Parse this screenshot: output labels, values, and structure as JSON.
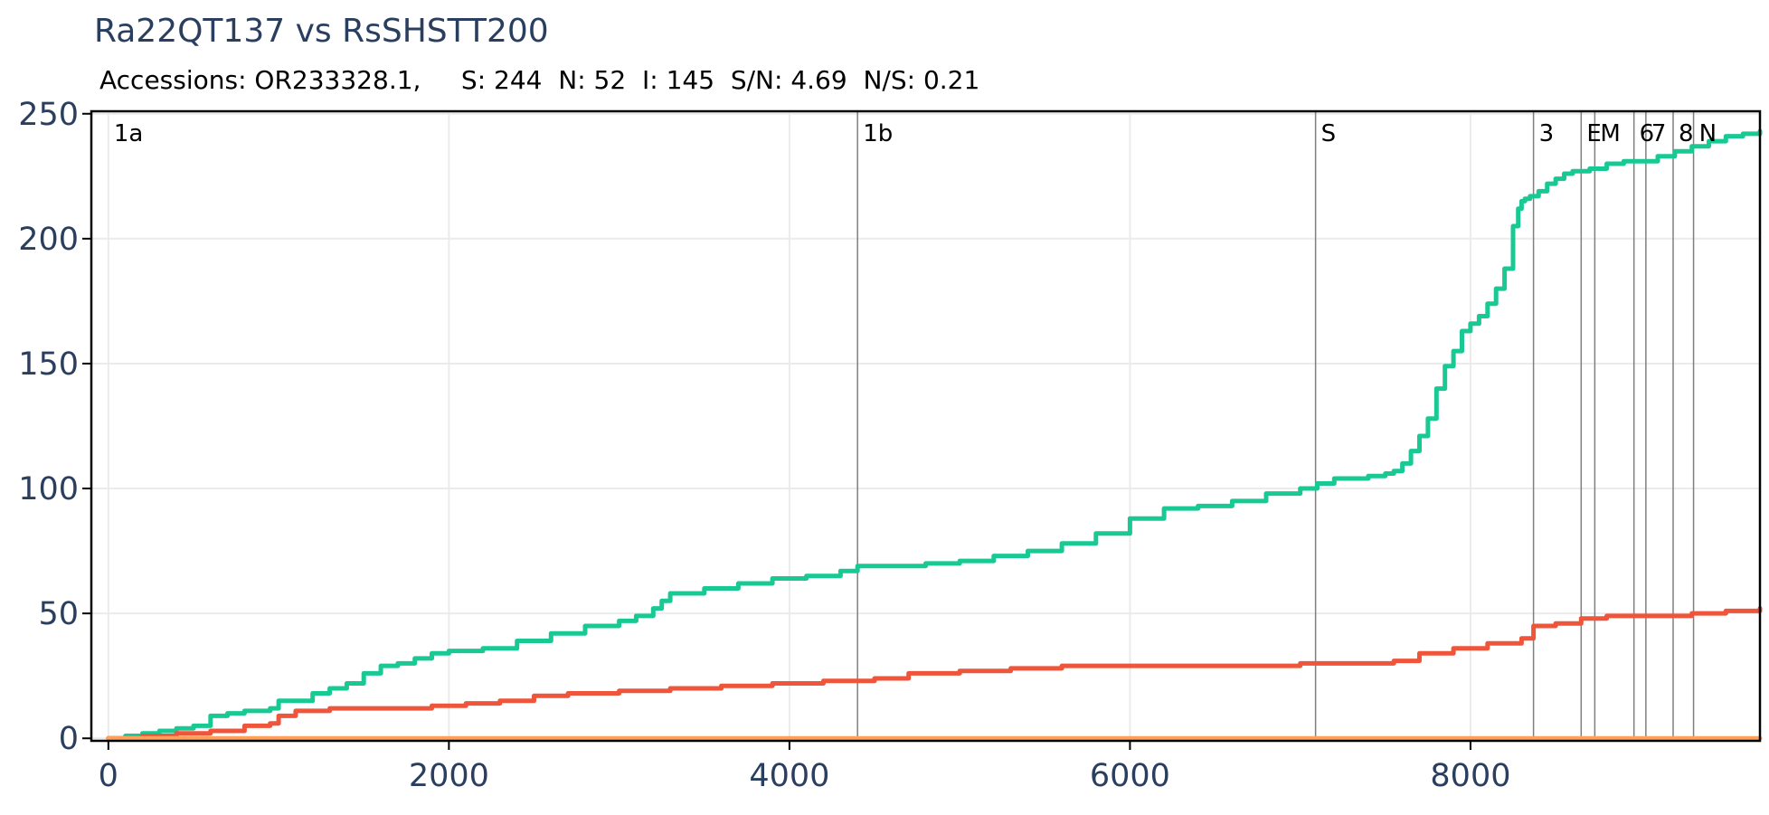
{
  "chart_data": {
    "type": "line",
    "title": "Ra22QT137 vs RsSHSTT200",
    "subtitle": "Accessions: OR233328.1,     S: 244  N: 52  I: 145  S/N: 4.69  N/S: 0.21",
    "xlim": [
      -100,
      9700
    ],
    "ylim": [
      -1,
      251
    ],
    "x_ticks": [
      0,
      2000,
      4000,
      6000,
      8000
    ],
    "y_ticks": [
      0,
      50,
      100,
      150,
      200,
      250
    ],
    "grid": true,
    "regions": [
      {
        "label": "1a",
        "x": 0
      },
      {
        "label": "1b",
        "x": 4400
      },
      {
        "label": "S",
        "x": 7090
      },
      {
        "label": "3",
        "x": 8370
      },
      {
        "label": "E",
        "x": 8650
      },
      {
        "label": "M",
        "x": 8730
      },
      {
        "label": "6",
        "x": 8960
      },
      {
        "label": "7",
        "x": 9030
      },
      {
        "label": "8",
        "x": 9190
      },
      {
        "label": "N",
        "x": 9310
      }
    ],
    "series": [
      {
        "color": "#19c994",
        "x": [
          0,
          100,
          200,
          300,
          400,
          500,
          600,
          700,
          800,
          900,
          950,
          1000,
          1100,
          1200,
          1300,
          1400,
          1500,
          1600,
          1700,
          1800,
          1900,
          2000,
          2200,
          2400,
          2600,
          2800,
          3000,
          3100,
          3200,
          3250,
          3300,
          3500,
          3700,
          3900,
          4100,
          4300,
          4400,
          4600,
          4800,
          5000,
          5200,
          5400,
          5600,
          5800,
          6000,
          6200,
          6400,
          6600,
          6800,
          7000,
          7100,
          7200,
          7400,
          7500,
          7550,
          7600,
          7650,
          7700,
          7750,
          7800,
          7850,
          7900,
          7950,
          8000,
          8050,
          8100,
          8150,
          8200,
          8250,
          8280,
          8300,
          8320,
          8350,
          8400,
          8450,
          8500,
          8550,
          8600,
          8650,
          8700,
          8800,
          8900,
          9000,
          9100,
          9200,
          9300,
          9400,
          9500,
          9600,
          9700
        ],
        "values": [
          0,
          1,
          2,
          3,
          4,
          5,
          9,
          10,
          11,
          11,
          12,
          15,
          15,
          18,
          20,
          22,
          26,
          29,
          30,
          32,
          34,
          35,
          36,
          39,
          42,
          45,
          47,
          49,
          52,
          55,
          58,
          60,
          62,
          64,
          65,
          67,
          69,
          69,
          70,
          71,
          73,
          75,
          78,
          82,
          88,
          92,
          93,
          95,
          98,
          100,
          102,
          104,
          105,
          106,
          107,
          110,
          115,
          121,
          128,
          140,
          149,
          155,
          163,
          166,
          169,
          174,
          180,
          188,
          205,
          212,
          215,
          216,
          217,
          219,
          222,
          224,
          226,
          227,
          227,
          228,
          230,
          231,
          231,
          233,
          235,
          237,
          239,
          241,
          242,
          243
        ]
      },
      {
        "color": "#ee553b",
        "x": [
          0,
          200,
          400,
          600,
          800,
          950,
          1000,
          1100,
          1300,
          1500,
          1700,
          1900,
          2100,
          2300,
          2500,
          2700,
          3000,
          3300,
          3600,
          3900,
          4200,
          4400,
          4500,
          4700,
          5000,
          5300,
          5600,
          6000,
          6500,
          7000,
          7300,
          7500,
          7550,
          7700,
          7900,
          8100,
          8300,
          8370,
          8500,
          8650,
          8800,
          9000,
          9200,
          9300,
          9500,
          9700
        ],
        "values": [
          0,
          1,
          2,
          3,
          5,
          6,
          9,
          11,
          12,
          12,
          12,
          13,
          14,
          15,
          17,
          18,
          19,
          20,
          21,
          22,
          23,
          23,
          24,
          26,
          27,
          28,
          29,
          29,
          29,
          30,
          30,
          30,
          31,
          34,
          36,
          38,
          40,
          45,
          46,
          48,
          49,
          49,
          49,
          50,
          51,
          52
        ]
      },
      {
        "color": "#ffa15a",
        "x": [
          0,
          9700
        ],
        "values": [
          0,
          0
        ]
      }
    ]
  }
}
